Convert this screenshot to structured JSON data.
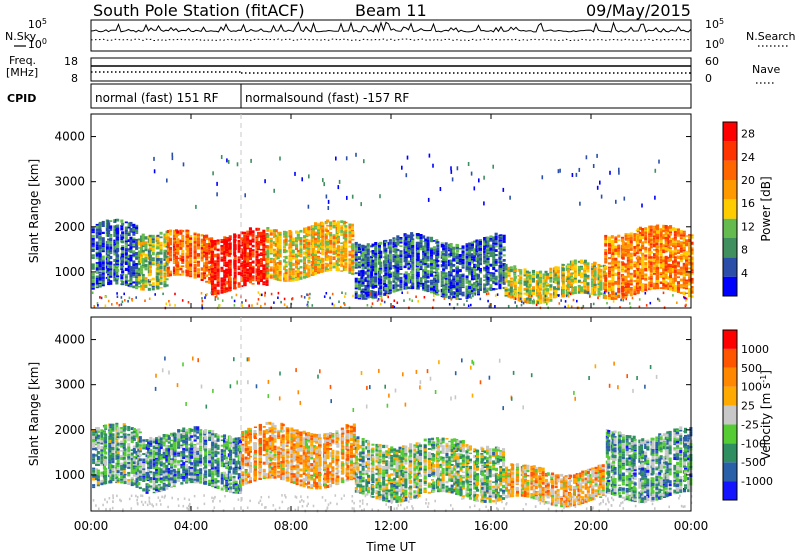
{
  "header": {
    "station": "South Pole Station (fitACF)",
    "beam": "Beam 11",
    "date": "09/May/2015"
  },
  "side_labels": {
    "n_sky": "N.Sky",
    "n_search": "N.Search",
    "freq_line1": "Freq.",
    "freq_line2": "[MHz]",
    "nave": "Nave",
    "cpid": "CPID"
  },
  "nsky_ticks": {
    "top": "10^5",
    "bottom": "10^0"
  },
  "nsearch_ticks": {
    "top": "10^5",
    "bottom": "10^0"
  },
  "freq_ticks": {
    "top": "18",
    "bottom": "8"
  },
  "nave_ticks": {
    "top": "60",
    "bottom": "0"
  },
  "cpid_segments": [
    {
      "label": "normal (fast) 151 RF",
      "start_hour": 0,
      "end_hour": 6
    },
    {
      "label": "normalsound (fast) -157 RF",
      "start_hour": 6,
      "end_hour": 24
    }
  ],
  "colors": {
    "power": [
      "#0000ff",
      "#2b4fa8",
      "#3f8f5f",
      "#66bb4e",
      "#ffcc00",
      "#ff9900",
      "#ff6600",
      "#ff3300",
      "#ff0000"
    ],
    "velocity": [
      "#ff0000",
      "#ff5500",
      "#ff8800",
      "#ffaa00",
      "#c8c8c8",
      "#55cc33",
      "#2f8f60",
      "#2a60a8",
      "#1414ff"
    ],
    "ground_scatter": "#c8c8c8"
  },
  "chart_data": [
    {
      "type": "heatmap",
      "title": "",
      "xlabel": "",
      "ylabel": "Slant Range [km]",
      "xlim_hours": [
        0,
        24
      ],
      "ylim": [
        200,
        4500
      ],
      "x_ticks": [
        "00:00",
        "04:00",
        "08:00",
        "12:00",
        "16:00",
        "20:00",
        "00:00"
      ],
      "y_ticks": [
        1000,
        2000,
        3000,
        4000
      ],
      "colorbar": {
        "label": "Power [dB]",
        "ticks": [
          28,
          24,
          20,
          16,
          12,
          8,
          4
        ],
        "range": [
          0,
          30
        ]
      },
      "echo_regions": [
        {
          "from_hour": 0.0,
          "to_hour": 1.8,
          "range_low": 600,
          "range_high": 2000,
          "value": 6
        },
        {
          "from_hour": 1.8,
          "to_hour": 3.0,
          "range_low": 700,
          "range_high": 1900,
          "value": 12
        },
        {
          "from_hour": 3.0,
          "to_hour": 4.8,
          "range_low": 800,
          "range_high": 1800,
          "value": 22
        },
        {
          "from_hour": 4.8,
          "to_hour": 7.0,
          "range_low": 600,
          "range_high": 1800,
          "value": 28
        },
        {
          "from_hour": 7.0,
          "to_hour": 10.5,
          "range_low": 900,
          "range_high": 2000,
          "value": 16
        },
        {
          "from_hour": 10.5,
          "to_hour": 16.5,
          "range_low": 500,
          "range_high": 1700,
          "value": 6
        },
        {
          "from_hour": 16.5,
          "to_hour": 20.5,
          "range_low": 400,
          "range_high": 1100,
          "value": 14
        },
        {
          "from_hour": 20.5,
          "to_hour": 24.0,
          "range_low": 500,
          "range_high": 1900,
          "value": 20
        }
      ]
    },
    {
      "type": "heatmap",
      "title": "",
      "xlabel": "Time UT",
      "ylabel": "Slant Range [km]",
      "xlim_hours": [
        0,
        24
      ],
      "ylim": [
        200,
        4500
      ],
      "x_ticks": [
        "00:00",
        "04:00",
        "08:00",
        "12:00",
        "16:00",
        "20:00",
        "00:00"
      ],
      "y_ticks": [
        1000,
        2000,
        3000,
        4000
      ],
      "colorbar": {
        "label": "Velocity [m s^-1]",
        "ticks": [
          1000,
          500,
          100,
          25,
          -25,
          -100,
          -500,
          -1000
        ],
        "range": [
          -1000,
          1000
        ]
      },
      "echo_regions": [
        {
          "from_hour": 0.0,
          "to_hour": 2.0,
          "range_low": 700,
          "range_high": 2000,
          "value": -300
        },
        {
          "from_hour": 2.0,
          "to_hour": 6.0,
          "range_low": 700,
          "range_high": 1900,
          "value": -400
        },
        {
          "from_hour": 6.0,
          "to_hour": 10.5,
          "range_low": 800,
          "range_high": 2000,
          "value": 300
        },
        {
          "from_hour": 10.5,
          "to_hour": 16.5,
          "range_low": 500,
          "range_high": 1700,
          "value": -150
        },
        {
          "from_hour": 16.5,
          "to_hour": 20.5,
          "range_low": 400,
          "range_high": 1100,
          "value": 250
        },
        {
          "from_hour": 20.5,
          "to_hour": 24.0,
          "range_low": 500,
          "range_high": 1900,
          "value": -350
        }
      ]
    }
  ]
}
